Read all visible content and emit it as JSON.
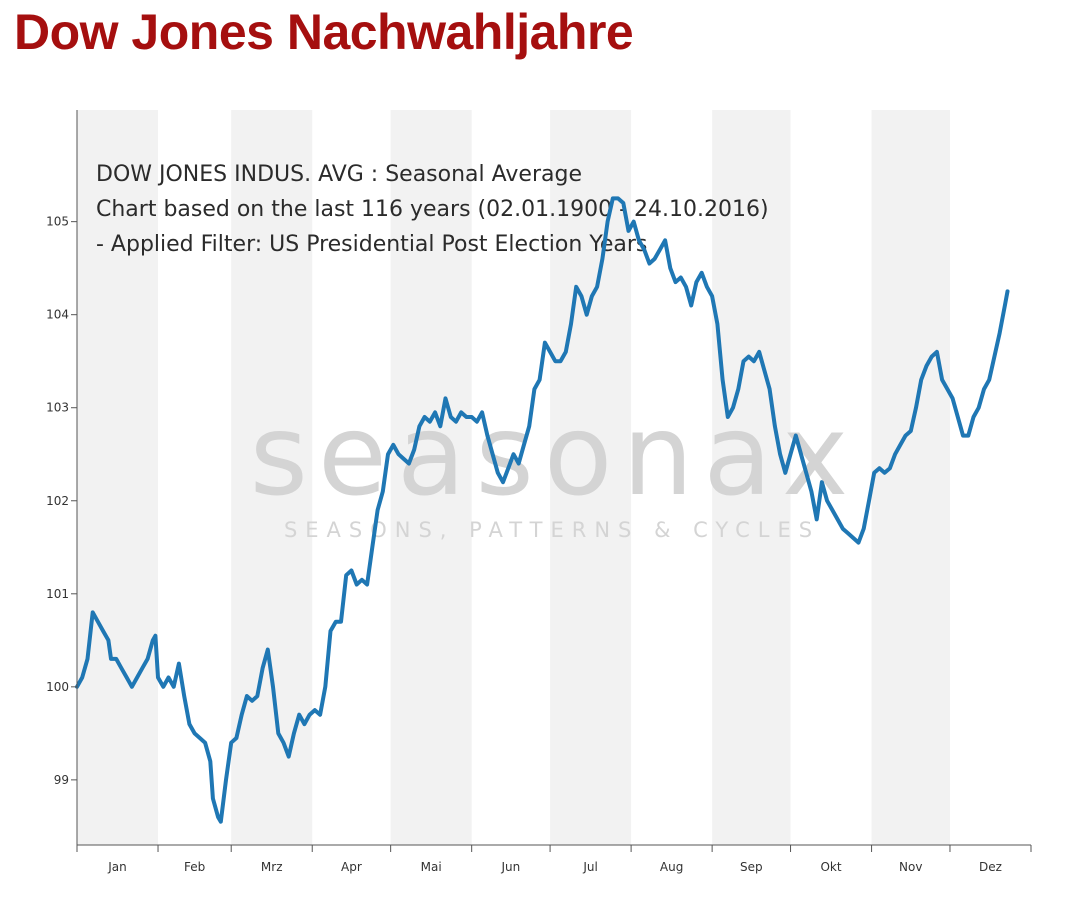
{
  "header": {
    "title": "Dow Jones Nachwahljahre",
    "title_color": "#a50f0f"
  },
  "colors": {
    "line": "#1f77b4",
    "band": "#f2f2f2",
    "axis": "#555555"
  },
  "watermark": {
    "logo": "seasonax",
    "tagline": "SEASONS, PATTERNS & CYCLES"
  },
  "chart_data": {
    "type": "line",
    "title": "",
    "xlabel": "",
    "ylabel": "",
    "ylim": [
      98.3,
      106.2
    ],
    "yticks": [
      99,
      100,
      101,
      102,
      103,
      104,
      105
    ],
    "ytick_labels": [
      "99",
      "100",
      "101",
      "102",
      "103",
      "104",
      "105"
    ],
    "months": [
      "Jan",
      "Feb",
      "Mrz",
      "Apr",
      "Mai",
      "Jun",
      "Jul",
      "Aug",
      "Sep",
      "Okt",
      "Nov",
      "Dez"
    ],
    "grid": false,
    "annotation_lines": [
      "DOW JONES INDUS. AVG : Seasonal Average",
      "Chart based on the last 116 years (02.01.1900 - 24.10.2016)",
      " - Applied Filter: US Presidential Post Election Years"
    ],
    "series": [
      {
        "x_unit": "day of year",
        "points": [
          [
            1,
            100.0
          ],
          [
            3,
            100.1
          ],
          [
            5,
            100.3
          ],
          [
            7,
            100.8
          ],
          [
            9,
            100.7
          ],
          [
            11,
            100.6
          ],
          [
            13,
            100.5
          ],
          [
            14,
            100.3
          ],
          [
            16,
            100.3
          ],
          [
            18,
            100.2
          ],
          [
            20,
            100.1
          ],
          [
            22,
            100.0
          ],
          [
            24,
            100.1
          ],
          [
            26,
            100.2
          ],
          [
            28,
            100.3
          ],
          [
            30,
            100.5
          ],
          [
            31,
            100.55
          ],
          [
            32,
            100.1
          ],
          [
            34,
            100.0
          ],
          [
            36,
            100.1
          ],
          [
            38,
            100.0
          ],
          [
            40,
            100.25
          ],
          [
            42,
            99.9
          ],
          [
            44,
            99.6
          ],
          [
            46,
            99.5
          ],
          [
            48,
            99.45
          ],
          [
            50,
            99.4
          ],
          [
            52,
            99.2
          ],
          [
            53,
            98.8
          ],
          [
            55,
            98.6
          ],
          [
            56,
            98.55
          ],
          [
            58,
            99.0
          ],
          [
            60,
            99.4
          ],
          [
            62,
            99.45
          ],
          [
            64,
            99.7
          ],
          [
            66,
            99.9
          ],
          [
            68,
            99.85
          ],
          [
            70,
            99.9
          ],
          [
            72,
            100.2
          ],
          [
            74,
            100.4
          ],
          [
            76,
            100.0
          ],
          [
            78,
            99.5
          ],
          [
            80,
            99.4
          ],
          [
            82,
            99.25
          ],
          [
            84,
            99.5
          ],
          [
            86,
            99.7
          ],
          [
            88,
            99.6
          ],
          [
            90,
            99.7
          ],
          [
            92,
            99.75
          ],
          [
            94,
            99.7
          ],
          [
            96,
            100.0
          ],
          [
            98,
            100.6
          ],
          [
            100,
            100.7
          ],
          [
            102,
            100.7
          ],
          [
            104,
            101.2
          ],
          [
            106,
            101.25
          ],
          [
            108,
            101.1
          ],
          [
            110,
            101.15
          ],
          [
            112,
            101.1
          ],
          [
            114,
            101.5
          ],
          [
            116,
            101.9
          ],
          [
            118,
            102.1
          ],
          [
            120,
            102.5
          ],
          [
            122,
            102.6
          ],
          [
            124,
            102.5
          ],
          [
            126,
            102.45
          ],
          [
            128,
            102.4
          ],
          [
            130,
            102.55
          ],
          [
            132,
            102.8
          ],
          [
            134,
            102.9
          ],
          [
            136,
            102.85
          ],
          [
            138,
            102.95
          ],
          [
            140,
            102.8
          ],
          [
            142,
            103.1
          ],
          [
            144,
            102.9
          ],
          [
            146,
            102.85
          ],
          [
            148,
            102.95
          ],
          [
            150,
            102.9
          ],
          [
            152,
            102.9
          ],
          [
            154,
            102.85
          ],
          [
            156,
            102.95
          ],
          [
            158,
            102.7
          ],
          [
            160,
            102.5
          ],
          [
            162,
            102.3
          ],
          [
            164,
            102.2
          ],
          [
            166,
            102.35
          ],
          [
            168,
            102.5
          ],
          [
            170,
            102.4
          ],
          [
            172,
            102.6
          ],
          [
            174,
            102.8
          ],
          [
            176,
            103.2
          ],
          [
            178,
            103.3
          ],
          [
            180,
            103.7
          ],
          [
            182,
            103.6
          ],
          [
            184,
            103.5
          ],
          [
            186,
            103.5
          ],
          [
            188,
            103.6
          ],
          [
            190,
            103.9
          ],
          [
            192,
            104.3
          ],
          [
            194,
            104.2
          ],
          [
            196,
            104.0
          ],
          [
            198,
            104.2
          ],
          [
            200,
            104.3
          ],
          [
            202,
            104.6
          ],
          [
            204,
            105.0
          ],
          [
            206,
            105.25
          ],
          [
            208,
            105.25
          ],
          [
            210,
            105.2
          ],
          [
            212,
            104.9
          ],
          [
            214,
            105.0
          ],
          [
            216,
            104.8
          ],
          [
            218,
            104.7
          ],
          [
            220,
            104.55
          ],
          [
            222,
            104.6
          ],
          [
            224,
            104.7
          ],
          [
            226,
            104.8
          ],
          [
            228,
            104.5
          ],
          [
            230,
            104.35
          ],
          [
            232,
            104.4
          ],
          [
            234,
            104.3
          ],
          [
            236,
            104.1
          ],
          [
            238,
            104.35
          ],
          [
            240,
            104.45
          ],
          [
            242,
            104.3
          ],
          [
            244,
            104.2
          ],
          [
            246,
            103.9
          ],
          [
            248,
            103.3
          ],
          [
            250,
            102.9
          ],
          [
            252,
            103.0
          ],
          [
            254,
            103.2
          ],
          [
            256,
            103.5
          ],
          [
            258,
            103.55
          ],
          [
            260,
            103.5
          ],
          [
            262,
            103.6
          ],
          [
            264,
            103.4
          ],
          [
            266,
            103.2
          ],
          [
            268,
            102.8
          ],
          [
            270,
            102.5
          ],
          [
            272,
            102.3
          ],
          [
            274,
            102.5
          ],
          [
            276,
            102.7
          ],
          [
            278,
            102.5
          ],
          [
            280,
            102.3
          ],
          [
            282,
            102.1
          ],
          [
            284,
            101.8
          ],
          [
            286,
            102.2
          ],
          [
            288,
            102.0
          ],
          [
            290,
            101.9
          ],
          [
            292,
            101.8
          ],
          [
            294,
            101.7
          ],
          [
            296,
            101.65
          ],
          [
            298,
            101.6
          ],
          [
            300,
            101.55
          ],
          [
            302,
            101.7
          ],
          [
            304,
            102.0
          ],
          [
            306,
            102.3
          ],
          [
            308,
            102.35
          ],
          [
            310,
            102.3
          ],
          [
            312,
            102.35
          ],
          [
            314,
            102.5
          ],
          [
            316,
            102.6
          ],
          [
            318,
            102.7
          ],
          [
            320,
            102.75
          ],
          [
            322,
            103.0
          ],
          [
            324,
            103.3
          ],
          [
            326,
            103.45
          ],
          [
            328,
            103.55
          ],
          [
            330,
            103.6
          ],
          [
            332,
            103.3
          ],
          [
            334,
            103.2
          ],
          [
            336,
            103.1
          ],
          [
            338,
            102.9
          ],
          [
            340,
            102.7
          ],
          [
            342,
            102.7
          ],
          [
            344,
            102.9
          ],
          [
            346,
            103.0
          ],
          [
            348,
            103.2
          ],
          [
            350,
            103.3
          ],
          [
            352,
            103.55
          ],
          [
            354,
            103.8
          ],
          [
            356,
            104.1
          ],
          [
            357,
            104.25
          ]
        ]
      }
    ]
  }
}
